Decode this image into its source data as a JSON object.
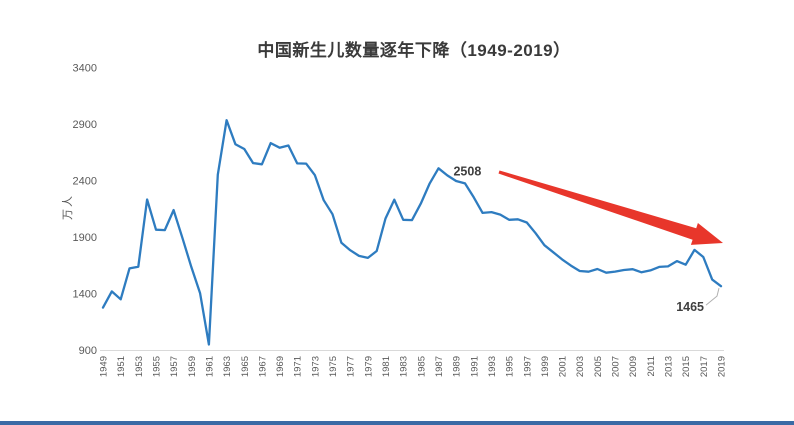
{
  "page": {
    "background": "#ffffff",
    "bottom_bar_color": "#3a6aa5"
  },
  "chart_data": {
    "type": "line",
    "title": "中国新生儿数量逐年下降（1949-2019）",
    "xlabel": "",
    "ylabel": "万人",
    "ylim": [
      900,
      3400
    ],
    "yticks": [
      900,
      1400,
      1900,
      2400,
      2900,
      3400
    ],
    "xtick_labels": [
      "1949",
      "1951",
      "1953",
      "1955",
      "1957",
      "1959",
      "1961",
      "1963",
      "1965",
      "1967",
      "1969",
      "1971",
      "1973",
      "1975",
      "1977",
      "1979",
      "1981",
      "1983",
      "1985",
      "1987",
      "1989",
      "1991",
      "1993",
      "1995",
      "1997",
      "1999",
      "2001",
      "2003",
      "2005",
      "2007",
      "2009",
      "2011",
      "2013",
      "2015",
      "2017",
      "2019"
    ],
    "grid": false,
    "legend": "none",
    "line_color": "#2e7cc0",
    "tick_color": "#595959",
    "axis_line_color": "#d9d9d9",
    "annotation_color": "#3f3f3f",
    "leader_line_color": "#b0b0b0",
    "arrow_color": "#e8362b",
    "x": [
      1949,
      1950,
      1951,
      1952,
      1953,
      1954,
      1955,
      1956,
      1957,
      1958,
      1959,
      1960,
      1961,
      1962,
      1963,
      1964,
      1965,
      1966,
      1967,
      1968,
      1969,
      1970,
      1971,
      1972,
      1973,
      1974,
      1975,
      1976,
      1977,
      1978,
      1979,
      1980,
      1981,
      1982,
      1983,
      1984,
      1985,
      1986,
      1987,
      1988,
      1989,
      1990,
      1991,
      1992,
      1993,
      1994,
      1995,
      1996,
      1997,
      1998,
      1999,
      2000,
      2001,
      2002,
      2003,
      2004,
      2005,
      2006,
      2007,
      2008,
      2009,
      2010,
      2011,
      2012,
      2013,
      2014,
      2015,
      2016,
      2017,
      2018,
      2019
    ],
    "series": [
      {
        "values": [
          1275,
          1419,
          1349,
          1622,
          1637,
          2232,
          1965,
          1961,
          2138,
          1889,
          1635,
          1402,
          949,
          2451,
          2934,
          2721,
          2679,
          2554,
          2543,
          2731,
          2690,
          2710,
          2551,
          2550,
          2447,
          2226,
          2102,
          1849,
          1783,
          1733,
          1715,
          1776,
          2064,
          2230,
          2052,
          2050,
          2196,
          2374,
          2508,
          2445,
          2396,
          2374,
          2250,
          2113,
          2120,
          2098,
          2052,
          2057,
          2028,
          1934,
          1827,
          1765,
          1702,
          1647,
          1599,
          1593,
          1617,
          1584,
          1594,
          1608,
          1615,
          1588,
          1604,
          1635,
          1640,
          1687,
          1655,
          1786,
          1723,
          1523,
          1465
        ]
      }
    ],
    "annotations": [
      {
        "text": "2508",
        "year": 1987,
        "value": 2508,
        "placement": "above-right",
        "leader": false
      },
      {
        "text": "1465",
        "year": 2019,
        "value": 1465,
        "placement": "below-left",
        "leader": true
      }
    ],
    "arrow": {
      "from": [
        499,
        172
      ],
      "to": [
        723,
        243
      ]
    }
  }
}
